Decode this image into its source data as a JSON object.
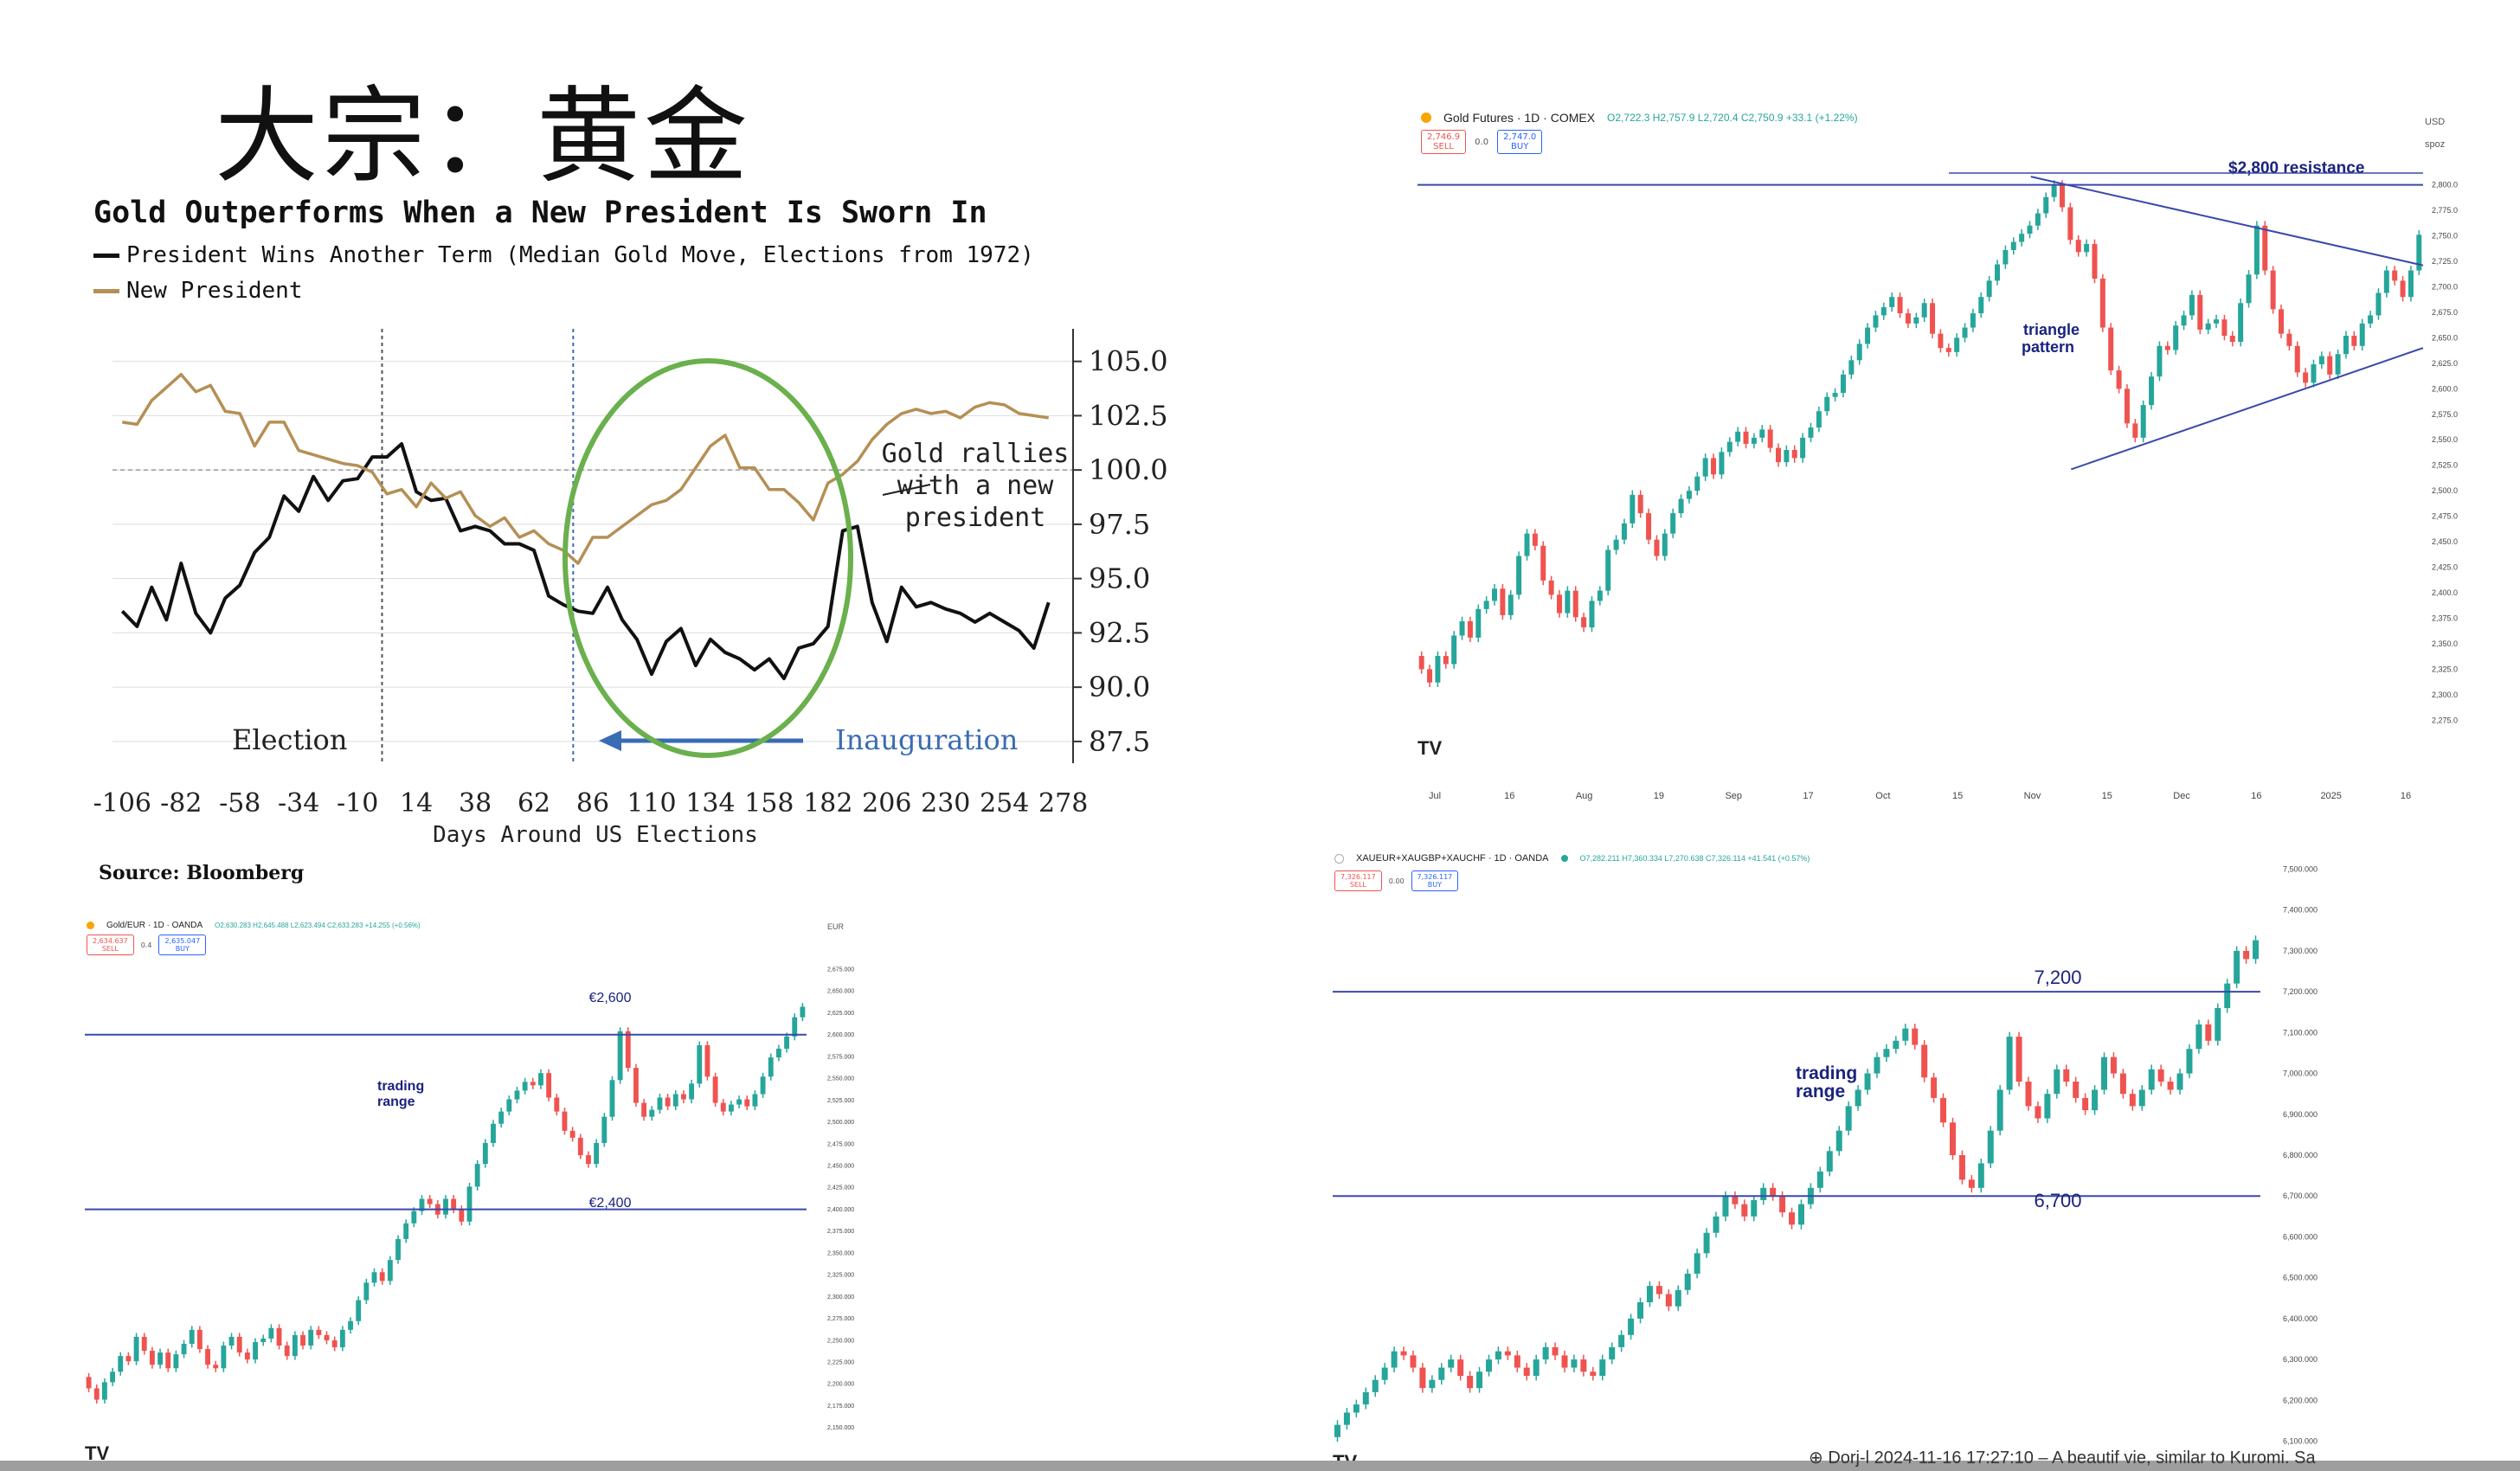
{
  "slide": {
    "title": "大宗：黄金",
    "bottom_caption": "⊕ Dorj-l 2024-11-16 17:27:10 – A beautif   vie, similar to Kuromi. Sa"
  },
  "chart_data": [
    {
      "id": "election",
      "type": "line",
      "title": "Gold Outperforms When a New President Is Sworn In",
      "xlabel": "Days Around US Elections",
      "ylabel": "",
      "xlim": [
        -110,
        282
      ],
      "ylim": [
        86.5,
        106.5
      ],
      "x_ticks": [
        -106,
        -82,
        -58,
        -34,
        -10,
        14,
        38,
        62,
        86,
        110,
        134,
        158,
        182,
        206,
        230,
        254,
        278
      ],
      "y_ticks": [
        105.0,
        102.5,
        100.0,
        97.5,
        95.0,
        92.5,
        90.0,
        87.5
      ],
      "y_tick_labels": [
        "105.0",
        "102.5",
        "100.0",
        "97.5",
        "95.0",
        "92.5",
        "90.0",
        "87.5"
      ],
      "reference_line": 100.0,
      "grid": true,
      "legend_position": "top-left",
      "source": "Source: Bloomberg",
      "series": [
        {
          "name": "President Wins Another Term (Median Gold Move, Elections from 1972)",
          "color": "#111111",
          "x": [
            -106,
            -100,
            -94,
            -88,
            -82,
            -76,
            -70,
            -64,
            -58,
            -52,
            -46,
            -40,
            -34,
            -28,
            -22,
            -16,
            -10,
            -4,
            2,
            8,
            14,
            20,
            26,
            32,
            38,
            44,
            50,
            56,
            62,
            68,
            74,
            80,
            86,
            92,
            98,
            104,
            110,
            116,
            122,
            128,
            134,
            140,
            146,
            152,
            158,
            164,
            170,
            176,
            182,
            188,
            194,
            200,
            206,
            212,
            218,
            224,
            230,
            236,
            242,
            248,
            254,
            260,
            266,
            272
          ],
          "y": [
            93.5,
            92.8,
            94.6,
            93.1,
            95.7,
            93.4,
            92.5,
            94.1,
            94.7,
            96.2,
            96.9,
            98.8,
            98.1,
            99.7,
            98.6,
            99.5,
            99.6,
            100.6,
            100.6,
            101.2,
            99.0,
            98.6,
            98.7,
            97.2,
            97.4,
            97.2,
            96.6,
            96.6,
            96.3,
            94.2,
            93.8,
            93.5,
            93.4,
            94.6,
            93.1,
            92.2,
            90.6,
            92.1,
            92.7,
            91.0,
            92.2,
            91.6,
            91.3,
            90.8,
            91.3,
            90.4,
            91.8,
            92.0,
            92.8,
            97.2,
            97.4,
            93.9,
            92.1,
            94.6,
            93.7,
            93.9,
            93.6,
            93.4,
            93.0,
            93.4,
            93.0,
            92.6,
            91.8,
            93.9
          ]
        },
        {
          "name": "New President",
          "color": "#b58f55",
          "x": [
            -106,
            -100,
            -94,
            -88,
            -82,
            -76,
            -70,
            -64,
            -58,
            -52,
            -46,
            -40,
            -34,
            -28,
            -22,
            -16,
            -10,
            -4,
            2,
            8,
            14,
            20,
            26,
            32,
            38,
            44,
            50,
            56,
            62,
            68,
            74,
            80,
            86,
            92,
            98,
            104,
            110,
            116,
            122,
            128,
            134,
            140,
            146,
            152,
            158,
            164,
            170,
            176,
            182,
            188,
            194,
            200,
            206,
            212,
            218,
            224,
            230,
            236,
            242,
            248,
            254,
            260,
            266,
            272
          ],
          "y": [
            102.2,
            102.1,
            103.2,
            103.8,
            104.4,
            103.6,
            103.9,
            102.7,
            102.6,
            101.1,
            102.2,
            102.2,
            100.9,
            100.7,
            100.5,
            100.3,
            100.2,
            99.9,
            98.9,
            99.1,
            98.3,
            99.4,
            98.7,
            99.0,
            97.9,
            97.4,
            97.8,
            96.9,
            97.2,
            96.6,
            96.3,
            95.7,
            96.9,
            96.9,
            97.4,
            97.9,
            98.4,
            98.6,
            99.1,
            100.1,
            101.1,
            101.6,
            100.1,
            100.1,
            99.1,
            99.1,
            98.5,
            97.7,
            99.4,
            99.8,
            100.4,
            101.4,
            102.1,
            102.6,
            102.8,
            102.6,
            102.7,
            102.4,
            102.9,
            103.1,
            103.0,
            102.6,
            102.5,
            102.4
          ]
        }
      ],
      "annotations": [
        "Election",
        "Gold rallies",
        "with a new",
        "president",
        "Inauguration"
      ]
    },
    {
      "id": "gold-futures",
      "type": "candlestick",
      "header": {
        "name": "Gold Futures · 1D · COMEX",
        "ohlc": "O2,722.3 H2,757.9 L2,720.4 C2,750.9 +33.1 (+1.22%)",
        "sell": [
          "2,746.9",
          "SELL"
        ],
        "spread": "0.0",
        "buy": [
          "2,747.0",
          "BUY"
        ],
        "corner_top": "USD",
        "corner_bottom": "spoz",
        "logo": "TV"
      },
      "ylim": [
        2260,
        2820
      ],
      "y_tick_labels": [
        "2,800.0",
        "2,775.0",
        "2,750.0",
        "2,725.0",
        "2,700.0",
        "2,675.0",
        "2,650.0",
        "2,625.0",
        "2,600.0",
        "2,575.0",
        "2,550.0",
        "2,525.0",
        "2,500.0",
        "2,475.0",
        "2,450.0",
        "2,425.0",
        "2,400.0",
        "2,375.0",
        "2,350.0",
        "2,325.0",
        "2,300.0",
        "2,275.0"
      ],
      "y_ticks": [
        2800,
        2775,
        2750,
        2725,
        2700,
        2675,
        2650,
        2625,
        2600,
        2575,
        2550,
        2525,
        2500,
        2475,
        2450,
        2425,
        2400,
        2375,
        2350,
        2325,
        2300,
        2275
      ],
      "x_tick_labels": [
        "Jul",
        "16",
        "Aug",
        "19",
        "Sep",
        "17",
        "Oct",
        "15",
        "Nov",
        "15",
        "Dec",
        "16",
        "2025",
        "16"
      ],
      "closes": [
        2325,
        2312,
        2338,
        2330,
        2358,
        2372,
        2356,
        2384,
        2392,
        2404,
        2378,
        2398,
        2436,
        2458,
        2446,
        2412,
        2398,
        2380,
        2402,
        2376,
        2366,
        2392,
        2402,
        2442,
        2452,
        2468,
        2496,
        2478,
        2452,
        2436,
        2458,
        2478,
        2492,
        2500,
        2514,
        2532,
        2516,
        2538,
        2548,
        2558,
        2546,
        2552,
        2560,
        2542,
        2528,
        2540,
        2532,
        2552,
        2562,
        2578,
        2592,
        2596,
        2614,
        2628,
        2644,
        2660,
        2672,
        2680,
        2690,
        2674,
        2664,
        2670,
        2684,
        2654,
        2640,
        2636,
        2650,
        2660,
        2674,
        2690,
        2706,
        2722,
        2736,
        2744,
        2752,
        2760,
        2772,
        2788,
        2800,
        2778,
        2746,
        2734,
        2742,
        2708,
        2660,
        2618,
        2600,
        2566,
        2552,
        2584,
        2612,
        2642,
        2638,
        2662,
        2672,
        2692,
        2658,
        2664,
        2668,
        2652,
        2646,
        2684,
        2712,
        2760,
        2716,
        2678,
        2654,
        2642,
        2616,
        2606,
        2624,
        2632,
        2614,
        2634,
        2652,
        2642,
        2664,
        2672,
        2694,
        2716,
        2706,
        2690,
        2716,
        2751
      ],
      "series": [
        {
          "name": "$2,800 resistance",
          "x": [
            0.0,
            1.0
          ],
          "y": [
            2800,
            2800
          ]
        },
        {
          "name": "",
          "x": [
            0.61,
            1.0
          ],
          "y": [
            2808,
            2721
          ]
        },
        {
          "name": "",
          "x": [
            0.65,
            1.0
          ],
          "y": [
            2521,
            2640
          ]
        }
      ],
      "annotations": [
        "$2,800 resistance",
        "triangle",
        "pattern"
      ]
    },
    {
      "id": "gold-eur",
      "type": "candlestick",
      "header": {
        "name": "Gold/EUR · 1D · OANDA",
        "ohlc": "O2,630.283 H2,645.488 L2,623.494 C2,633.283 +14.255 (+0.56%)",
        "sell": [
          "2,634.637",
          "SELL"
        ],
        "spread": "0.4",
        "buy": [
          "2,635.047",
          "BUY"
        ],
        "corner_top": "EUR",
        "logo": "TV"
      },
      "ylim": [
        2135,
        2690
      ],
      "y_tick_labels": [
        "2,675.000",
        "2,650.000",
        "2,625.000",
        "2,600.000",
        "2,575.000",
        "2,550.000",
        "2,525.000",
        "2,500.000",
        "2,475.000",
        "2,450.000",
        "2,425.000",
        "2,400.000",
        "2,375.000",
        "2,350.000",
        "2,325.000",
        "2,300.000",
        "2,275.000",
        "2,250.000",
        "2,225.000",
        "2,200.000",
        "2,175.000",
        "2,150.000"
      ],
      "y_ticks": [
        2675,
        2650,
        2625,
        2600,
        2575,
        2550,
        2525,
        2500,
        2475,
        2450,
        2425,
        2400,
        2375,
        2350,
        2325,
        2300,
        2275,
        2250,
        2225,
        2200,
        2175,
        2150
      ],
      "closes": [
        2195,
        2182,
        2202,
        2214,
        2232,
        2226,
        2254,
        2238,
        2222,
        2236,
        2218,
        2234,
        2246,
        2262,
        2240,
        2222,
        2218,
        2244,
        2254,
        2236,
        2228,
        2248,
        2252,
        2264,
        2244,
        2232,
        2256,
        2244,
        2262,
        2256,
        2250,
        2242,
        2262,
        2272,
        2296,
        2316,
        2328,
        2318,
        2342,
        2366,
        2384,
        2398,
        2412,
        2406,
        2394,
        2412,
        2400,
        2386,
        2426,
        2452,
        2476,
        2498,
        2512,
        2526,
        2536,
        2546,
        2542,
        2556,
        2528,
        2512,
        2490,
        2482,
        2462,
        2452,
        2476,
        2506,
        2548,
        2604,
        2562,
        2522,
        2506,
        2514,
        2528,
        2518,
        2532,
        2526,
        2544,
        2588,
        2552,
        2522,
        2512,
        2520,
        2526,
        2518,
        2532,
        2552,
        2574,
        2584,
        2598,
        2620,
        2632
      ],
      "series": [
        {
          "name": "€2,600",
          "x": [
            0.0,
            1.0
          ],
          "y": [
            2600,
            2600
          ]
        },
        {
          "name": "€2,400",
          "x": [
            0.0,
            1.0
          ],
          "y": [
            2400,
            2400
          ]
        }
      ],
      "annotations": [
        "€2,600",
        "€2,400",
        "trading",
        "range"
      ]
    },
    {
      "id": "basket",
      "type": "candlestick",
      "header": {
        "name": "XAUEUR+XAUGBP+XAUCHF · 1D · OANDA",
        "ohlc": "O7,282.211 H7,360.334 L7,270.638 C7,326.114 +41.541 (+0.57%)",
        "sell": [
          "7,326.117",
          "SELL"
        ],
        "spread": "0.00",
        "buy": [
          "7,326.117",
          "BUY"
        ],
        "logo": "TV"
      },
      "ylim": [
        6080,
        7520
      ],
      "y_tick_labels": [
        "7,500.000",
        "7,400.000",
        "7,300.000",
        "7,200.000",
        "7,100.000",
        "7,000.000",
        "6,900.000",
        "6,800.000",
        "6,700.000",
        "6,600.000",
        "6,500.000",
        "6,400.000",
        "6,300.000",
        "6,200.000",
        "6,100.000"
      ],
      "y_ticks": [
        7500,
        7400,
        7300,
        7200,
        7100,
        7000,
        6900,
        6800,
        6700,
        6600,
        6500,
        6400,
        6300,
        6200,
        6100
      ],
      "closes": [
        6140,
        6170,
        6190,
        6220,
        6250,
        6280,
        6320,
        6310,
        6280,
        6230,
        6250,
        6280,
        6300,
        6260,
        6230,
        6270,
        6300,
        6320,
        6310,
        6280,
        6260,
        6300,
        6330,
        6310,
        6280,
        6300,
        6270,
        6260,
        6300,
        6330,
        6360,
        6400,
        6440,
        6480,
        6460,
        6430,
        6470,
        6510,
        6560,
        6610,
        6650,
        6700,
        6680,
        6650,
        6690,
        6720,
        6700,
        6660,
        6630,
        6680,
        6720,
        6760,
        6810,
        6860,
        6920,
        6960,
        7000,
        7040,
        7060,
        7080,
        7110,
        7070,
        6990,
        6940,
        6880,
        6800,
        6740,
        6720,
        6780,
        6860,
        6960,
        7090,
        6980,
        6920,
        6890,
        6950,
        7010,
        6980,
        6940,
        6910,
        6960,
        7040,
        7000,
        6950,
        6920,
        6960,
        7010,
        6980,
        6960,
        7000,
        7060,
        7120,
        7080,
        7160,
        7220,
        7300,
        7280,
        7326
      ],
      "series": [
        {
          "name": "7,200",
          "x": [
            0.0,
            1.0
          ],
          "y": [
            7200,
            7200
          ]
        },
        {
          "name": "6,700",
          "x": [
            0.0,
            1.0
          ],
          "y": [
            6700,
            6700
          ]
        }
      ],
      "annotations": [
        "7,200",
        "6,700",
        "trading",
        "range"
      ]
    }
  ]
}
